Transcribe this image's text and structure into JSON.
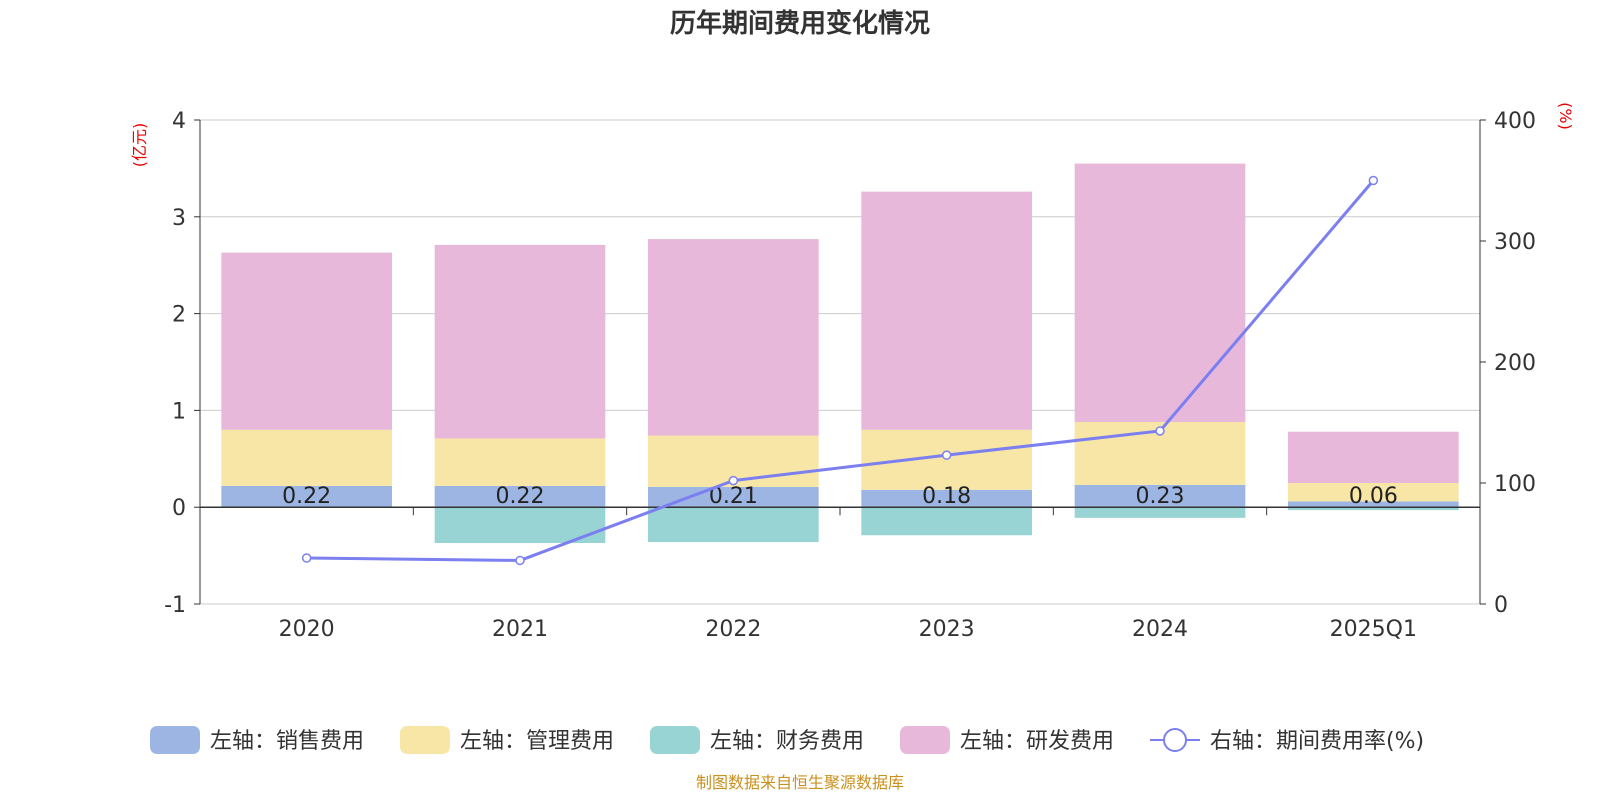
{
  "chart_data": {
    "type": "bar",
    "title": "历年期间费用变化情况",
    "categories": [
      "2020",
      "2021",
      "2022",
      "2023",
      "2024",
      "2025Q1"
    ],
    "left_axis": {
      "unit": "(亿元)",
      "ylim": [
        -1,
        4
      ],
      "ticks": [
        "4",
        "3",
        "2",
        "1",
        "0",
        "-1"
      ]
    },
    "right_axis": {
      "unit": "(%)",
      "ylim": [
        0,
        400
      ],
      "ticks": [
        "400",
        "300",
        "200",
        "100",
        "0"
      ]
    },
    "stacked": true,
    "series": [
      {
        "name": "左轴：销售费用",
        "color": "#9cb5e2",
        "values": [
          0.22,
          0.22,
          0.21,
          0.18,
          0.23,
          0.06
        ]
      },
      {
        "name": "左轴：管理费用",
        "color": "#f8e6a6",
        "values": [
          0.58,
          0.49,
          0.53,
          0.62,
          0.65,
          0.19
        ]
      },
      {
        "name": "左轴：财务费用",
        "color": "#98d4d4",
        "values": [
          0.0,
          -0.37,
          -0.36,
          -0.29,
          -0.11,
          -0.03
        ]
      },
      {
        "name": "左轴：研发费用",
        "color": "#e7b8d9",
        "values": [
          1.83,
          2.0,
          2.03,
          2.46,
          2.67,
          0.53
        ]
      }
    ],
    "line_series": {
      "name": "右轴：期间费用率(%)",
      "color": "#7b7ff0",
      "axis": "right",
      "values": [
        38,
        36,
        102,
        123,
        143,
        350
      ]
    },
    "bar_labels": [
      "0.22",
      "0.22",
      "0.21",
      "0.18",
      "0.23",
      "0.06"
    ],
    "grid": true,
    "legend_position": "bottom"
  },
  "footer": {
    "source": "制图数据来自恒生聚源数据库"
  }
}
